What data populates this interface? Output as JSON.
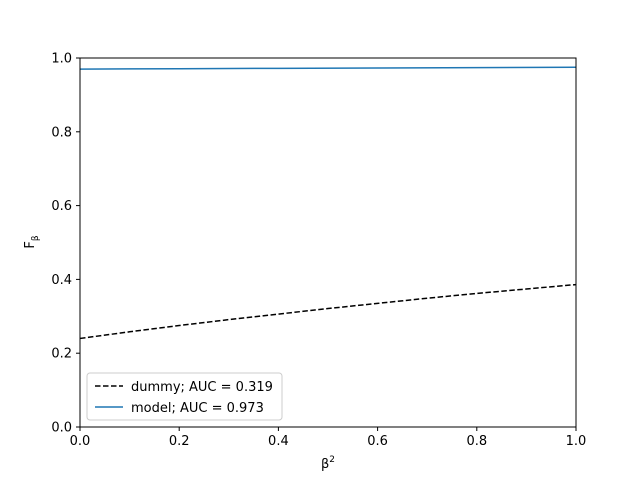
{
  "chart_data": {
    "type": "line",
    "xlabel_base": "β",
    "xlabel_sup": "2",
    "ylabel_base": "F",
    "ylabel_sub": "β",
    "xlim": [
      0.0,
      1.0
    ],
    "ylim": [
      0.0,
      1.0
    ],
    "xticks": [
      0.0,
      0.2,
      0.4,
      0.6,
      0.8,
      1.0
    ],
    "yticks": [
      0.0,
      0.2,
      0.4,
      0.6,
      0.8,
      1.0
    ],
    "xtick_labels": [
      "0.0",
      "0.2",
      "0.4",
      "0.6",
      "0.8",
      "1.0"
    ],
    "ytick_labels": [
      "0.0",
      "0.2",
      "0.4",
      "0.6",
      "0.8",
      "1.0"
    ],
    "grid": false,
    "legend_position": "lower-left",
    "series": [
      {
        "name": "dummy; AUC = 0.319",
        "color": "#000000",
        "style": "dashed",
        "x": [
          0.0,
          0.1,
          0.2,
          0.3,
          0.4,
          0.5,
          0.6,
          0.7,
          0.8,
          0.9,
          1.0
        ],
        "y": [
          0.24,
          0.258,
          0.275,
          0.291,
          0.306,
          0.321,
          0.335,
          0.349,
          0.362,
          0.374,
          0.386
        ]
      },
      {
        "name": "model; AUC = 0.973",
        "color": "#1f77b4",
        "style": "solid",
        "x": [
          0.0,
          0.2,
          0.4,
          0.6,
          0.8,
          1.0
        ],
        "y": [
          0.97,
          0.971,
          0.972,
          0.973,
          0.974,
          0.975
        ]
      }
    ]
  }
}
